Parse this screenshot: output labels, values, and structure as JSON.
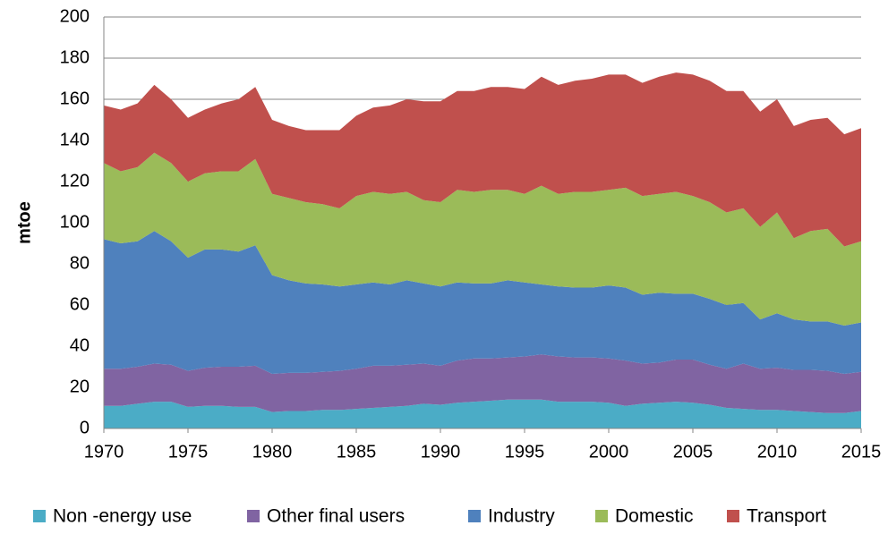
{
  "chart_data": {
    "type": "stacked_area",
    "y_label": "mtoe",
    "x": [
      1970,
      1971,
      1972,
      1973,
      1974,
      1975,
      1976,
      1977,
      1978,
      1979,
      1980,
      1981,
      1982,
      1983,
      1984,
      1985,
      1986,
      1987,
      1988,
      1989,
      1990,
      1991,
      1992,
      1993,
      1994,
      1995,
      1996,
      1997,
      1998,
      1999,
      2000,
      2001,
      2002,
      2003,
      2004,
      2005,
      2006,
      2007,
      2008,
      2009,
      2010,
      2011,
      2012,
      2013,
      2014,
      2015
    ],
    "xlim": [
      1970,
      2015
    ],
    "xticks": [
      1970,
      1975,
      1980,
      1985,
      1990,
      1995,
      2000,
      2005,
      2010,
      2015
    ],
    "ylim": [
      0,
      200
    ],
    "yticks": [
      0,
      20,
      40,
      60,
      80,
      100,
      120,
      140,
      160,
      180,
      200
    ],
    "grid": true,
    "legend": "bottom",
    "series": [
      {
        "name": "Non -energy use",
        "color": "#4bacc6",
        "values": [
          11,
          11,
          12,
          13,
          13,
          10.5,
          11,
          11,
          10.5,
          10.5,
          8,
          8.5,
          8.5,
          9,
          9,
          9.5,
          10,
          10.5,
          11,
          12,
          11.5,
          12.5,
          13,
          13.5,
          14,
          14,
          14,
          13,
          13,
          13,
          12.5,
          11,
          12,
          12.5,
          13,
          12.5,
          11.5,
          10,
          9.5,
          9,
          9,
          8.5,
          8,
          7.5,
          7.5,
          8.5
        ]
      },
      {
        "name": "Other final users",
        "color": "#8064a2",
        "values": [
          18,
          18,
          18,
          18.5,
          18,
          17.5,
          18.5,
          19,
          19.5,
          20,
          18.5,
          18.5,
          18.5,
          18.5,
          19,
          19.5,
          20.5,
          20,
          20,
          19.5,
          19,
          20.5,
          21,
          20.5,
          20.5,
          21,
          22,
          22,
          21.5,
          21.5,
          21.5,
          22,
          19.5,
          19.5,
          20.5,
          21,
          19.5,
          19,
          22,
          20,
          20.5,
          20,
          20.5,
          20.5,
          19,
          19
        ]
      },
      {
        "name": "Industry",
        "color": "#4f81bd",
        "values": [
          63,
          61,
          61,
          64.5,
          60,
          55,
          57.5,
          57,
          56,
          58.5,
          48,
          45,
          43.5,
          42.5,
          41,
          41,
          40.5,
          39.5,
          41,
          39,
          38.5,
          38,
          36.5,
          36.5,
          37.5,
          36,
          34,
          34,
          34,
          34,
          35.5,
          35.5,
          33.5,
          34,
          32,
          32,
          32,
          31,
          29.5,
          24,
          26.5,
          24.5,
          23.5,
          24,
          23.5,
          24
        ]
      },
      {
        "name": "Domestic",
        "color": "#9bbb59",
        "values": [
          37,
          35,
          36,
          38,
          38,
          37,
          37,
          38,
          39,
          42,
          39.5,
          40,
          39.5,
          39,
          38,
          43,
          44,
          44,
          43,
          40.5,
          41,
          45,
          44.5,
          45.5,
          44,
          43,
          48,
          45,
          46.5,
          46.5,
          46.5,
          48.5,
          48,
          48,
          49.5,
          47.5,
          47,
          45,
          46,
          45,
          49,
          39.5,
          44,
          45,
          38.5,
          39.5
        ]
      },
      {
        "name": "Transport",
        "color": "#c0504d",
        "values": [
          28,
          30,
          31,
          33,
          31,
          31,
          31,
          33,
          35,
          35,
          36,
          35,
          35,
          36,
          38,
          39,
          41,
          43,
          45,
          48,
          49,
          48,
          49,
          50,
          50,
          51,
          53,
          53,
          54,
          55,
          56,
          55,
          55,
          57,
          58,
          59,
          59,
          59,
          57,
          56,
          55,
          54.5,
          54,
          54,
          54.5,
          55
        ]
      }
    ]
  }
}
